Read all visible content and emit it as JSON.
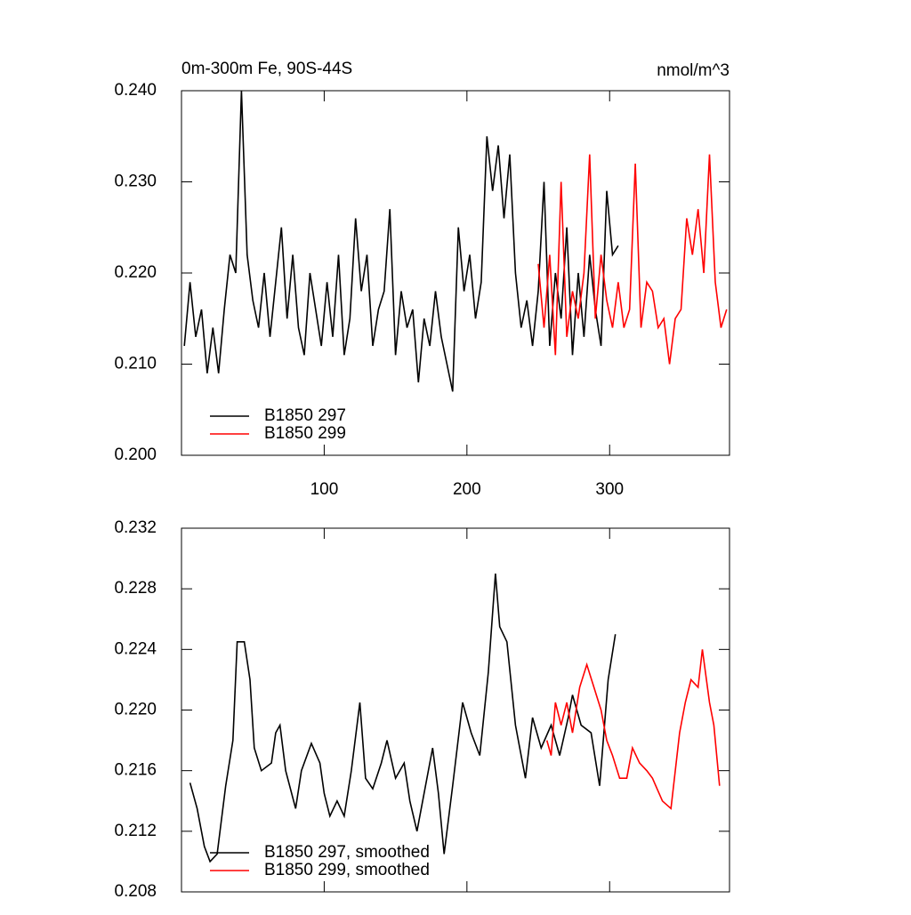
{
  "chart_data": [
    {
      "type": "line",
      "title": "0m-300m Fe, 90S-44S",
      "subtitle": "nmol/m^3",
      "xlim": [
        0,
        384
      ],
      "xticks": [
        100,
        200,
        300
      ],
      "ylim": [
        0.2,
        0.24
      ],
      "yticks": [
        {
          "value": 0.2,
          "label": "0.200"
        },
        {
          "value": 0.21,
          "label": "0.210"
        },
        {
          "value": 0.22,
          "label": "0.220"
        },
        {
          "value": 0.23,
          "label": "0.230"
        },
        {
          "value": 0.24,
          "label": "0.240"
        }
      ],
      "legend": "lower left",
      "series": [
        {
          "name": "B1850 297",
          "color": "#000000",
          "x": [
            2,
            6,
            10,
            14,
            18,
            22,
            26,
            30,
            34,
            38,
            42,
            46,
            50,
            54,
            58,
            62,
            66,
            70,
            74,
            78,
            82,
            86,
            90,
            94,
            98,
            102,
            106,
            110,
            114,
            118,
            122,
            126,
            130,
            134,
            138,
            142,
            146,
            150,
            154,
            158,
            162,
            166,
            170,
            174,
            178,
            182,
            186,
            190,
            194,
            198,
            202,
            206,
            210,
            214,
            218,
            222,
            226,
            230,
            234,
            238,
            242,
            246,
            250,
            254,
            258,
            262,
            266,
            270,
            274,
            278,
            282,
            286,
            290,
            294,
            298,
            302,
            306
          ],
          "values": [
            0.212,
            0.219,
            0.213,
            0.216,
            0.209,
            0.214,
            0.209,
            0.216,
            0.222,
            0.22,
            0.24,
            0.222,
            0.217,
            0.214,
            0.22,
            0.213,
            0.219,
            0.225,
            0.215,
            0.222,
            0.214,
            0.211,
            0.22,
            0.216,
            0.212,
            0.219,
            0.213,
            0.222,
            0.211,
            0.215,
            0.226,
            0.218,
            0.222,
            0.212,
            0.216,
            0.218,
            0.227,
            0.211,
            0.218,
            0.214,
            0.216,
            0.208,
            0.215,
            0.212,
            0.218,
            0.213,
            0.21,
            0.207,
            0.225,
            0.218,
            0.222,
            0.215,
            0.219,
            0.235,
            0.229,
            0.234,
            0.226,
            0.233,
            0.22,
            0.214,
            0.217,
            0.212,
            0.218,
            0.23,
            0.212,
            0.22,
            0.215,
            0.225,
            0.211,
            0.22,
            0.213,
            0.222,
            0.216,
            0.212,
            0.229,
            0.222,
            0.223
          ]
        },
        {
          "name": "B1850 299",
          "color": "#ff0000",
          "x": [
            250,
            254,
            258,
            262,
            266,
            270,
            274,
            278,
            282,
            286,
            290,
            294,
            298,
            302,
            306,
            310,
            314,
            318,
            322,
            326,
            330,
            334,
            338,
            342,
            346,
            350,
            354,
            358,
            362,
            366,
            370,
            374,
            378,
            382
          ],
          "values": [
            0.221,
            0.214,
            0.222,
            0.211,
            0.23,
            0.213,
            0.218,
            0.215,
            0.22,
            0.233,
            0.215,
            0.222,
            0.217,
            0.214,
            0.219,
            0.214,
            0.216,
            0.232,
            0.214,
            0.219,
            0.218,
            0.214,
            0.215,
            0.21,
            0.215,
            0.216,
            0.226,
            0.222,
            0.227,
            0.22,
            0.233,
            0.219,
            0.214,
            0.216
          ]
        }
      ]
    },
    {
      "type": "line",
      "xlim": [
        0,
        384
      ],
      "xticks": [
        100,
        200,
        300
      ],
      "ylim": [
        0.208,
        0.232
      ],
      "yticks": [
        0.208,
        0.212,
        {
          "value": 0.216,
          "label": "0.216"
        },
        {
          "value": 0.22,
          "label": "0.220"
        },
        0.224,
        0.228,
        0.232
      ],
      "legend": "lower left",
      "series": [
        {
          "name": "B1850 297, smoothed",
          "color": "#000000",
          "x": [
            6,
            11,
            16,
            20,
            25,
            31,
            36,
            39,
            44,
            48,
            51,
            56,
            63,
            66,
            69,
            73,
            80,
            84,
            91,
            97,
            100,
            104,
            109,
            114,
            119,
            125,
            129,
            134,
            140,
            144,
            150,
            156,
            160,
            165,
            170,
            176,
            180,
            184,
            190,
            197,
            203,
            209,
            215,
            220,
            223,
            228,
            234,
            241,
            246,
            252,
            259,
            265,
            271,
            274,
            280,
            287,
            293,
            299,
            304
          ],
          "values": [
            0.2152,
            0.2135,
            0.211,
            0.21,
            0.2105,
            0.215,
            0.218,
            0.2245,
            0.2245,
            0.222,
            0.2175,
            0.216,
            0.2165,
            0.2185,
            0.219,
            0.216,
            0.2135,
            0.216,
            0.2178,
            0.2165,
            0.2145,
            0.213,
            0.214,
            0.213,
            0.216,
            0.2205,
            0.2155,
            0.2148,
            0.2165,
            0.218,
            0.2155,
            0.2165,
            0.214,
            0.212,
            0.2145,
            0.2175,
            0.2145,
            0.2105,
            0.215,
            0.2205,
            0.2185,
            0.217,
            0.2225,
            0.229,
            0.2255,
            0.2245,
            0.219,
            0.2155,
            0.2195,
            0.2175,
            0.219,
            0.217,
            0.2195,
            0.221,
            0.219,
            0.2185,
            0.215,
            0.222,
            0.225
          ]
        },
        {
          "name": "B1850 299, smoothed",
          "color": "#ff0000",
          "x": [
            256,
            259,
            262,
            266,
            270,
            274,
            279,
            284,
            289,
            294,
            298,
            302,
            307,
            312,
            316,
            321,
            326,
            330,
            337,
            343,
            349,
            353,
            357,
            362,
            365,
            370,
            373,
            377
          ],
          "values": [
            0.218,
            0.217,
            0.2205,
            0.219,
            0.2205,
            0.2185,
            0.2215,
            0.223,
            0.2215,
            0.22,
            0.218,
            0.217,
            0.2155,
            0.2155,
            0.2175,
            0.2165,
            0.216,
            0.2155,
            0.214,
            0.2135,
            0.2185,
            0.2205,
            0.222,
            0.2215,
            0.224,
            0.2205,
            0.219,
            0.215
          ]
        }
      ]
    }
  ]
}
